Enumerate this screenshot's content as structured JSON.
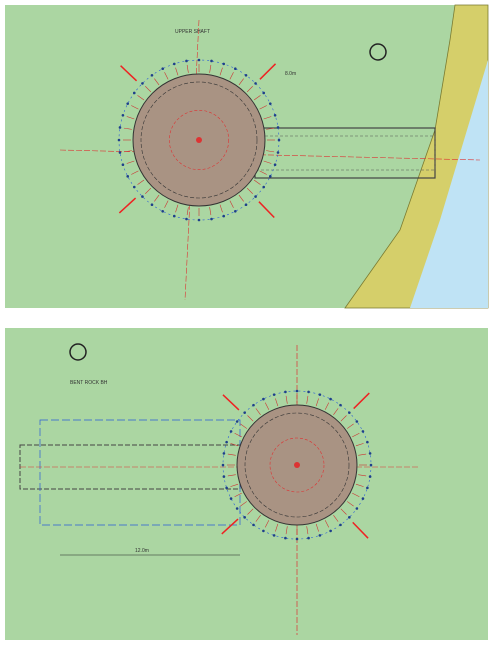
{
  "panels": [
    {
      "labels": [
        "UPPER SHAFT",
        "8.0m"
      ]
    },
    {
      "labels": [
        "BENT ROCK BH",
        "12.0m"
      ]
    }
  ]
}
